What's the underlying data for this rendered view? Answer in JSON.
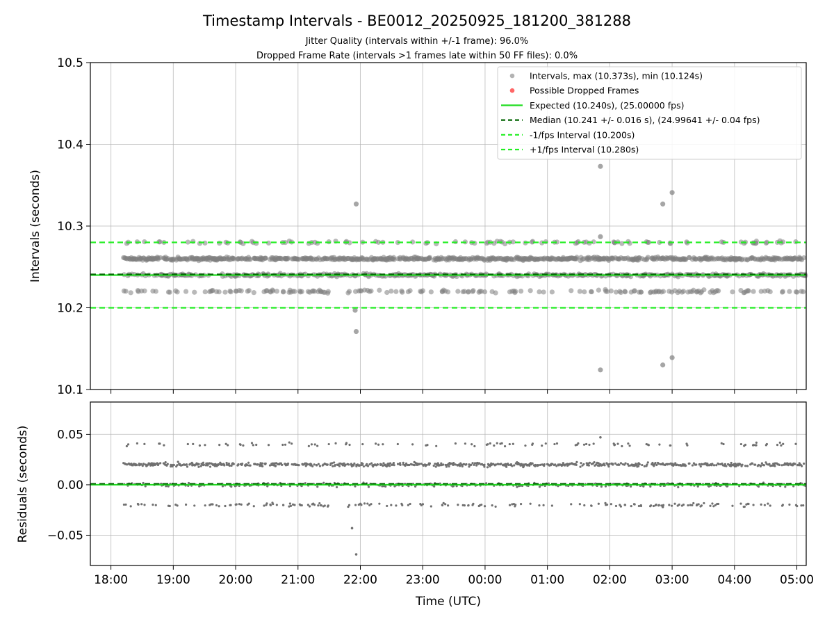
{
  "title": "Timestamp Intervals - BE0012_20250925_181200_381288",
  "subtitle_lines": [
    "Jitter Quality (intervals within +/-1 frame): 96.0%",
    "Dropped Frame Rate (intervals >1 frames late within 50 FF files): 0.0%"
  ],
  "colors": {
    "scatter": "#808080",
    "dropped": "#ff5555",
    "expected": "#22dd22",
    "median": "#006400",
    "fps_bounds": "#22ee22",
    "grid": "#b0b0b0"
  },
  "chart_data": [
    {
      "type": "scatter",
      "panel": "top",
      "xlabel": "",
      "ylabel": "Intervals (seconds)",
      "ylim": [
        10.1,
        10.5
      ],
      "yticks": [
        "10.1",
        "10.2",
        "10.3",
        "10.4",
        "10.5"
      ],
      "xlim_hours": [
        17.67,
        29.15
      ],
      "xticks": [
        "18:00",
        "19:00",
        "20:00",
        "21:00",
        "22:00",
        "23:00",
        "00:00",
        "01:00",
        "02:00",
        "03:00",
        "04:00",
        "05:00"
      ],
      "grid": true,
      "legend_position": "top-right",
      "legend": [
        "Intervals, max (10.373s), min (10.124s)",
        "Possible Dropped Frames",
        "Expected (10.240s), (25.00000 fps)",
        "Median (10.241 +/- 0.016 s), (24.99641 +/- 0.04 fps)",
        "-1/fps Interval (10.200s)",
        "+1/fps Interval (10.280s)"
      ],
      "reference_lines": {
        "expected": 10.24,
        "median": 10.241,
        "minus_fps": 10.2,
        "plus_fps": 10.28
      },
      "data_start_hour": 18.2,
      "data_end_hour": 29.15,
      "interval_bands": [
        {
          "value": 10.26,
          "share": 0.5
        },
        {
          "value": 10.24,
          "share": 0.3
        },
        {
          "value": 10.22,
          "share": 0.13
        },
        {
          "value": 10.28,
          "share": 0.07
        }
      ],
      "outliers": [
        {
          "x": "21:56",
          "y": 10.327
        },
        {
          "x": "21:55",
          "y": 10.197
        },
        {
          "x": "21:56",
          "y": 10.171
        },
        {
          "x": "01:51",
          "y": 10.373
        },
        {
          "x": "01:51",
          "y": 10.287
        },
        {
          "x": "01:51",
          "y": 10.124
        },
        {
          "x": "02:51",
          "y": 10.327
        },
        {
          "x": "03:00",
          "y": 10.341
        },
        {
          "x": "02:51",
          "y": 10.13
        },
        {
          "x": "03:00",
          "y": 10.139
        }
      ]
    },
    {
      "type": "scatter",
      "panel": "bottom",
      "xlabel": "Time (UTC)",
      "ylabel": "Residuals (seconds)",
      "ylim": [
        -0.08,
        0.082
      ],
      "yticks": [
        "−0.05",
        "0.00",
        "0.05"
      ],
      "ytick_values": [
        -0.05,
        0.0,
        0.05
      ],
      "grid": true,
      "reference_lines": {
        "zero": 0.0,
        "median": 0.001
      },
      "residual_bands": [
        {
          "value": 0.02,
          "share": 0.5
        },
        {
          "value": 0.0,
          "share": 0.3
        },
        {
          "value": -0.02,
          "share": 0.13
        },
        {
          "value": 0.04,
          "share": 0.07
        }
      ],
      "outliers": [
        {
          "x": "21:52",
          "y": -0.043
        },
        {
          "x": "21:56",
          "y": -0.069
        },
        {
          "x": "01:51",
          "y": 0.047
        },
        {
          "x": "02:51",
          "y": -0.022
        }
      ]
    }
  ]
}
